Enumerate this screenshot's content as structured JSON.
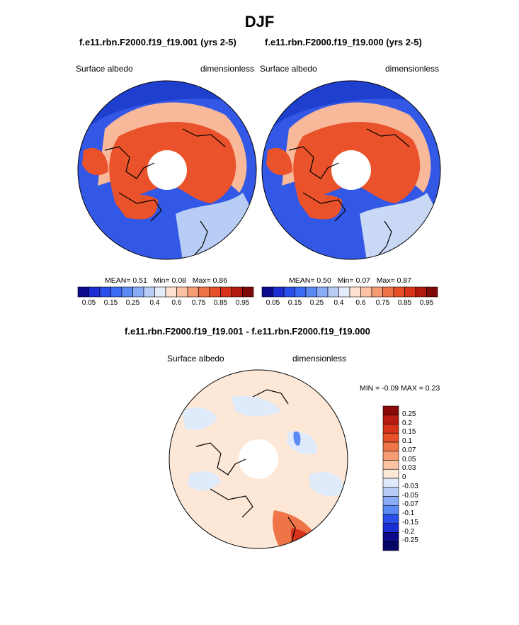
{
  "figure": {
    "main_title": "DJF",
    "colors": {
      "ocean_deep": "#1f3fcf",
      "land_snow": "#e8502a",
      "pole_hole": "#ffffff",
      "coastline": "#000000"
    }
  },
  "chart_data": [
    {
      "type": "heatmap",
      "projection": "north-polar-stereographic",
      "title": "f.e11.rbn.F2000.f19_f19.001 (yrs 2-5)",
      "variable_label": "Surface albedo",
      "units_label": "dimensionless",
      "stats": {
        "mean_text": "MEAN=   0.51",
        "min_text": "Min=   0.08",
        "max_text": "Max=   0.86"
      },
      "stats_values": {
        "mean": 0.51,
        "min": 0.08,
        "max": 0.86
      },
      "colorbar": {
        "orientation": "horizontal",
        "levels": [
          0.05,
          0.1,
          0.15,
          0.2,
          0.25,
          0.3,
          0.4,
          0.5,
          0.6,
          0.7,
          0.75,
          0.8,
          0.85,
          0.9,
          0.95
        ],
        "tick_labels": [
          "0.05",
          "0.15",
          "0.25",
          "0.4",
          "0.6",
          "0.75",
          "0.85",
          "0.95"
        ],
        "colors": [
          "#0b0b8c",
          "#1b2fd4",
          "#2a4ee8",
          "#3b6bf2",
          "#5b8af5",
          "#8aabf5",
          "#b8cdf5",
          "#e3ecf8",
          "#fde3d0",
          "#fbc3a3",
          "#f59c72",
          "#ef7447",
          "#e8502a",
          "#d8331a",
          "#b21a10",
          "#7e0a08"
        ]
      }
    },
    {
      "type": "heatmap",
      "projection": "north-polar-stereographic",
      "title": "f.e11.rbn.F2000.f19_f19.000 (yrs 2-5)",
      "variable_label": "Surface albedo",
      "units_label": "dimensionless",
      "stats": {
        "mean_text": "MEAN=   0.50",
        "min_text": "Min=   0.07",
        "max_text": "Max=   0.87"
      },
      "stats_values": {
        "mean": 0.5,
        "min": 0.07,
        "max": 0.87
      },
      "colorbar": {
        "orientation": "horizontal",
        "levels": [
          0.05,
          0.1,
          0.15,
          0.2,
          0.25,
          0.3,
          0.4,
          0.5,
          0.6,
          0.7,
          0.75,
          0.8,
          0.85,
          0.9,
          0.95
        ],
        "tick_labels": [
          "0.05",
          "0.15",
          "0.25",
          "0.4",
          "0.6",
          "0.75",
          "0.85",
          "0.95"
        ],
        "colors": [
          "#0b0b8c",
          "#1b2fd4",
          "#2a4ee8",
          "#3b6bf2",
          "#5b8af5",
          "#8aabf5",
          "#b8cdf5",
          "#e3ecf8",
          "#fde3d0",
          "#fbc3a3",
          "#f59c72",
          "#ef7447",
          "#e8502a",
          "#d8331a",
          "#b21a10",
          "#7e0a08"
        ]
      }
    },
    {
      "type": "heatmap",
      "projection": "north-polar-stereographic",
      "title": "f.e11.rbn.F2000.f19_f19.001 - f.e11.rbn.F2000.f19_f19.000",
      "variable_label": "Surface albedo",
      "units_label": "dimensionless",
      "stats": {
        "minmax_text": "MIN =  -0.09 MAX =   0.23"
      },
      "stats_values": {
        "min": -0.09,
        "max": 0.23
      },
      "colorbar": {
        "orientation": "vertical",
        "levels": [
          0.25,
          0.2,
          0.15,
          0.1,
          0.07,
          0.05,
          0.03,
          0,
          -0.03,
          -0.05,
          -0.07,
          -0.1,
          -0.15,
          -0.2,
          -0.25
        ],
        "tick_labels": [
          "0.25",
          "0.2",
          "0.15",
          "0.1",
          "0.07",
          "0.05",
          "0.03",
          "0",
          "-0.03",
          "-0.05",
          "-0.07",
          "-0.1",
          "-0.15",
          "-0.2",
          "-0.25"
        ],
        "colors": [
          "#8a0a0a",
          "#b81c10",
          "#d8331a",
          "#e8502a",
          "#ef7447",
          "#f59c72",
          "#fbc3a3",
          "#fde8d8",
          "#dfeafb",
          "#b8cdf5",
          "#8aabf5",
          "#5b8af5",
          "#2a4ee8",
          "#1b2fd4",
          "#0b0b8c",
          "#050566"
        ]
      }
    }
  ]
}
